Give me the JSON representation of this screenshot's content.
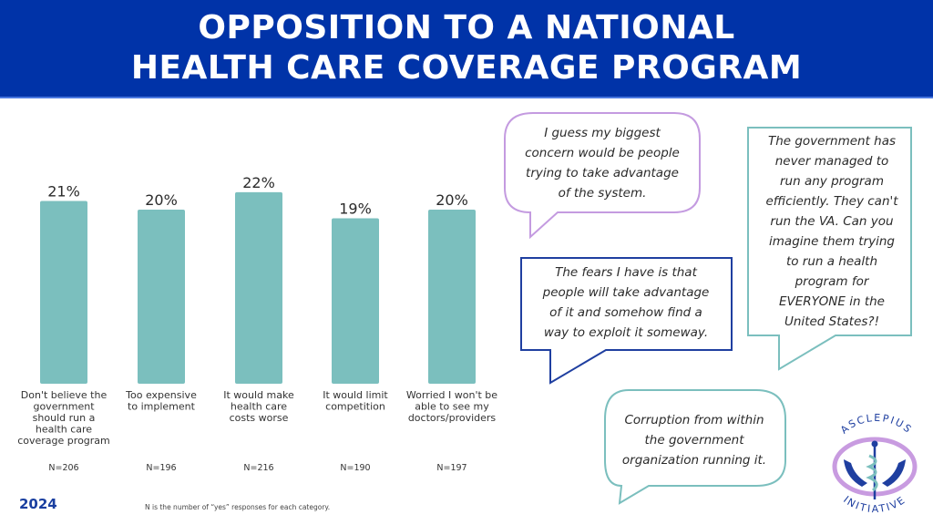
{
  "header": {
    "title_line1": "OPPOSITION TO A NATIONAL",
    "title_line2": "HEALTH CARE COVERAGE PROGRAM"
  },
  "colors": {
    "header_bg": "#0033a8",
    "bar": "#7bbfbe",
    "year": "#1a3fa0",
    "bubble_purple": "#c49be0",
    "bubble_teal": "#7bbfbe",
    "bubble_blue": "#1f3fa0"
  },
  "chart_data": {
    "type": "bar",
    "title": "Opposition to a National Health Care Coverage Program",
    "xlabel": "",
    "ylabel": "",
    "ylim": [
      0,
      22
    ],
    "grid": false,
    "categories": [
      "Don't believe the government should run a health care coverage program",
      "Too expensive to implement",
      "It would make health care costs worse",
      "It would limit competition",
      "Worried I won't be able to see my doctors/providers"
    ],
    "category_lines": [
      [
        "Don't believe the",
        "government",
        "should run a",
        "health care",
        "coverage program"
      ],
      [
        "Too expensive",
        "to implement"
      ],
      [
        "It would make",
        "health care",
        "costs worse"
      ],
      [
        "It would limit",
        "competition"
      ],
      [
        "Worried I won't be",
        "able to see my",
        "doctors/providers"
      ]
    ],
    "values": [
      21,
      20,
      22,
      19,
      20
    ],
    "value_labels": [
      "21%",
      "20%",
      "22%",
      "19%",
      "20%"
    ],
    "n_labels": [
      "N=206",
      "N=196",
      "N=216",
      "N=190",
      "N=197"
    ],
    "unit": "%"
  },
  "footer": {
    "year": "2024",
    "footnote": "N is the number of “yes” responses for each category."
  },
  "quotes": [
    {
      "text": "I guess my biggest concern would be people trying to take advantage of the system.",
      "lines": [
        "I guess my biggest",
        "concern would be people",
        "trying to take advantage",
        "of the system."
      ]
    },
    {
      "text": "The government has never managed to run any program efficiently. They can't run the VA. Can you imagine them trying to run a health program for EVERYONE in the United States?!",
      "lines": [
        "The government has",
        "never managed to",
        "run any program",
        "efficiently. They can't",
        "run the VA. Can you",
        "imagine them trying",
        "to run a health",
        "program for",
        "EVERYONE in the",
        "United States?!"
      ]
    },
    {
      "text": "The fears I have is that people will take advantage of it and somehow find a way to exploit it someway.",
      "lines": [
        "The fears I have is that",
        "people will take advantage",
        "of it and somehow find a",
        "way to exploit it someway."
      ]
    },
    {
      "text": "Corruption from within the government organization running it.",
      "lines": [
        "Corruption from within",
        "the government",
        "organization running it."
      ]
    }
  ],
  "logo": {
    "top_text": "ASCLEPIUS",
    "bottom_text": "INITIATIVE"
  }
}
